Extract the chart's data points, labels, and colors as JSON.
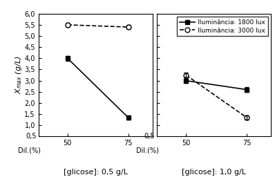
{
  "left_panel": {
    "x": [
      50,
      75
    ],
    "line1800": [
      4.0,
      1.35
    ],
    "line3000": [
      5.5,
      5.4
    ],
    "title": "[glicose]: 0,5 g/L"
  },
  "right_panel": {
    "x": [
      50,
      75
    ],
    "line1800": [
      3.0,
      2.6
    ],
    "line3000": [
      3.25,
      1.35
    ],
    "title": "[glicose]: 1,0 g/L"
  },
  "ylabel": "X_max (g/L)",
  "ylim": [
    0.5,
    6.0
  ],
  "yticks": [
    1.0,
    1.5,
    2.0,
    2.5,
    3.0,
    3.5,
    4.0,
    4.5,
    5.0,
    5.5,
    6.0
  ],
  "ytick_labels": [
    "1,0",
    "1,5",
    "2,0",
    "2,5",
    "3,0",
    "3,5",
    "4,0",
    "4,5",
    "5,0",
    "5,5",
    "6,0"
  ],
  "xticks": [
    50,
    75
  ],
  "dil_label": "Dil.(%)",
  "legend_labels": [
    "Iluminância: 1800 lux",
    "Iluminância: 3000 lux"
  ],
  "color": "#000000",
  "errorbar_cap": 2,
  "errorbar_size": 0.1,
  "marker_1800": "s",
  "marker_3000": "o"
}
